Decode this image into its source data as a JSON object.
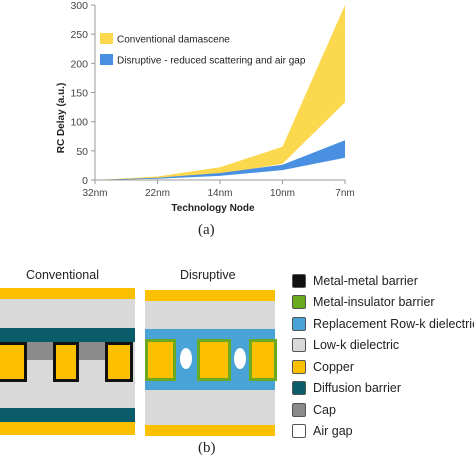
{
  "chart_data": {
    "type": "area",
    "categories": [
      "32nm",
      "22nm",
      "14nm",
      "10nm",
      "7nm"
    ],
    "series": [
      {
        "name": "Conventional damascene",
        "color": "#fcd84f",
        "lower": [
          0,
          2,
          10,
          28,
          133
        ],
        "upper": [
          0,
          6,
          22,
          57,
          300
        ]
      },
      {
        "name": "Disruptive - reduced scattering and air gap",
        "color": "#4a90e2",
        "lower": [
          0,
          2,
          7,
          17,
          38
        ],
        "upper": [
          0,
          4,
          12,
          26,
          68
        ]
      }
    ],
    "xlabel": "Technology Node",
    "ylabel": "RC Delay (a.u.)",
    "ylim": [
      0,
      300
    ],
    "yticks": [
      "0",
      "50",
      "100",
      "150",
      "200",
      "250",
      "300"
    ],
    "grid": false,
    "legend_position": "top-left"
  },
  "captions": {
    "a": "(a)",
    "b": "(b)"
  },
  "cross_section": {
    "conventional_label": "Conventional",
    "disruptive_label": "Disruptive",
    "legend": [
      {
        "label": "Metal-metal barrier",
        "color": "#111111"
      },
      {
        "label": "Metal-insulator barrier",
        "color": "#6aaa1e"
      },
      {
        "label": "Replacement Row-k dielectric",
        "color": "#4aa3d6"
      },
      {
        "label": "Low-k dielectric",
        "color": "#d9d9d9"
      },
      {
        "label": "Copper",
        "color": "#fcc000"
      },
      {
        "label": "Diffusion barrier",
        "color": "#0b5c6b"
      },
      {
        "label": "Cap",
        "color": "#8a8a8a"
      },
      {
        "label": "Air gap",
        "color": "#ffffff"
      }
    ]
  }
}
